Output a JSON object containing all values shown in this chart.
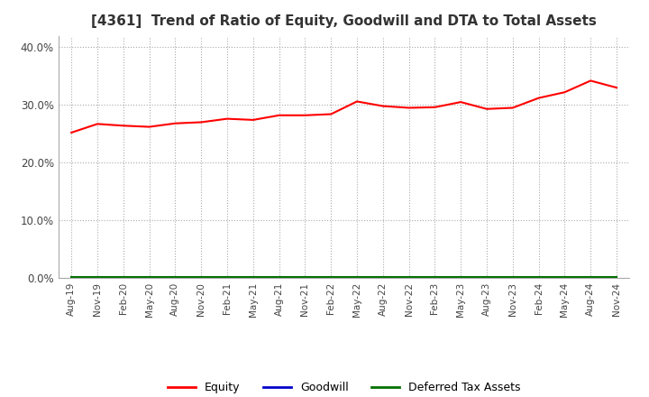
{
  "title": "[4361]  Trend of Ratio of Equity, Goodwill and DTA to Total Assets",
  "ylim": [
    0,
    0.42
  ],
  "yticks": [
    0.0,
    0.1,
    0.2,
    0.3,
    0.4
  ],
  "ytick_labels": [
    "0.0%",
    "10.0%",
    "20.0%",
    "30.0%",
    "40.0%"
  ],
  "x_labels": [
    "Aug-19",
    "Nov-19",
    "Feb-20",
    "May-20",
    "Aug-20",
    "Nov-20",
    "Feb-21",
    "May-21",
    "Aug-21",
    "Nov-21",
    "Feb-22",
    "May-22",
    "Aug-22",
    "Nov-22",
    "Feb-23",
    "May-23",
    "Aug-23",
    "Nov-23",
    "Feb-24",
    "May-24",
    "Aug-24",
    "Nov-24"
  ],
  "equity": [
    0.252,
    0.267,
    0.264,
    0.262,
    0.268,
    0.27,
    0.276,
    0.274,
    0.282,
    0.282,
    0.284,
    0.306,
    0.298,
    0.295,
    0.296,
    0.305,
    0.293,
    0.295,
    0.312,
    0.322,
    0.342,
    0.33
  ],
  "goodwill": [
    0.0,
    0.0,
    0.0,
    0.0,
    0.0,
    0.0,
    0.0,
    0.0,
    0.0,
    0.0,
    0.0,
    0.0,
    0.0,
    0.0,
    0.0,
    0.0,
    0.0,
    0.0,
    0.0,
    0.0,
    0.0,
    0.0
  ],
  "dta": [
    0.001,
    0.001,
    0.001,
    0.001,
    0.001,
    0.001,
    0.001,
    0.001,
    0.001,
    0.001,
    0.001,
    0.001,
    0.001,
    0.001,
    0.001,
    0.001,
    0.001,
    0.001,
    0.001,
    0.001,
    0.001,
    0.001
  ],
  "equity_color": "#ff0000",
  "goodwill_color": "#0000cc",
  "dta_color": "#007000",
  "background_color": "#ffffff",
  "grid_color": "#aaaaaa",
  "title_fontsize": 11,
  "legend_labels": [
    "Equity",
    "Goodwill",
    "Deferred Tax Assets"
  ]
}
